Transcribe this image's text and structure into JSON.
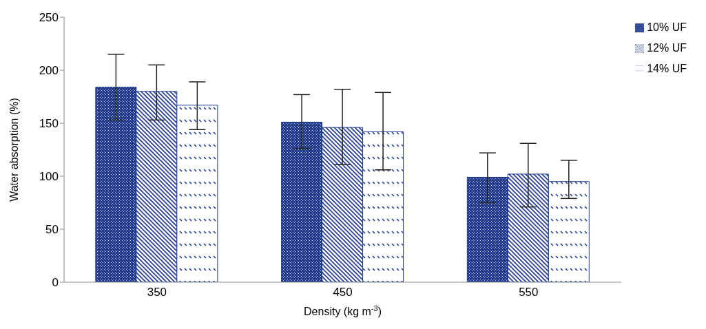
{
  "chart_data": {
    "type": "bar",
    "xlabel": "Density (kg m$^{-3}$)",
    "ylabel": "Water absorption (%)",
    "categories": [
      "350",
      "450",
      "550"
    ],
    "series": [
      {
        "name": "10% UF",
        "color": "#1f3a8f",
        "values": [
          184,
          151,
          99
        ],
        "errors": [
          [
            153,
            215
          ],
          [
            126,
            177
          ],
          [
            75,
            122
          ]
        ]
      },
      {
        "name": "12% UF",
        "color": "#1f3a8f",
        "values": [
          180,
          146,
          102
        ],
        "errors": [
          [
            153,
            205
          ],
          [
            111,
            182
          ],
          [
            71,
            131
          ]
        ]
      },
      {
        "name": "14% UF",
        "color": "#1f3a8f",
        "values": [
          167,
          142,
          95
        ],
        "errors": [
          [
            144,
            189
          ],
          [
            106,
            179
          ],
          [
            79,
            115
          ]
        ]
      }
    ],
    "ylim": [
      0,
      250
    ],
    "yticks": [
      0,
      50,
      100,
      150,
      200,
      250
    ],
    "grid": false,
    "legend": "top right"
  }
}
